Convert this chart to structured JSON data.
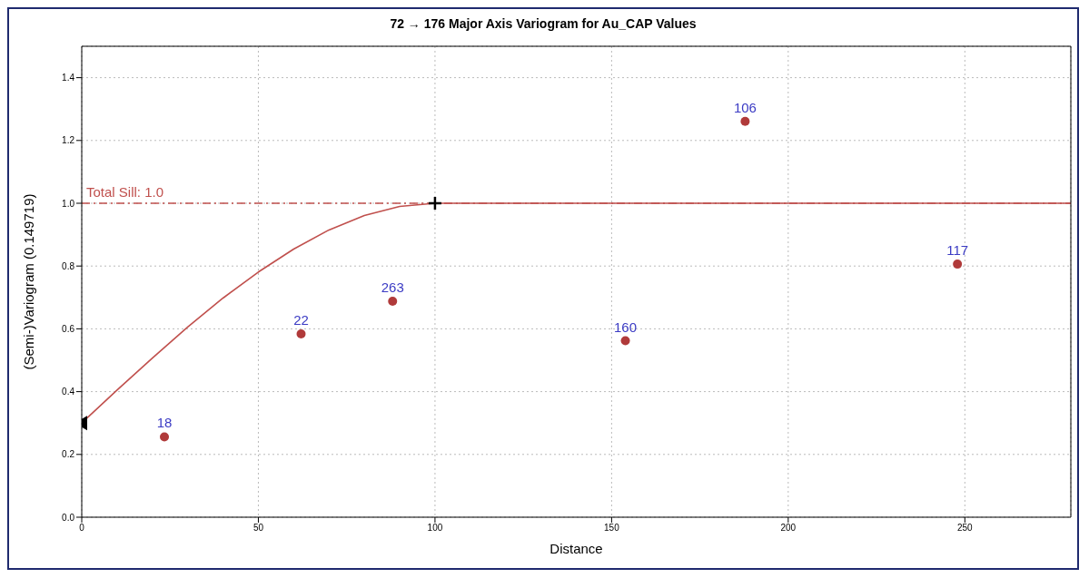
{
  "chart_data": {
    "type": "scatter",
    "title": "72 → 176 Major Axis Variogram for Au_CAP Values",
    "xlabel": "Distance",
    "ylabel": "(Semi-)Variogram (0.149719)",
    "xlim": [
      0,
      280
    ],
    "xticks": [
      0,
      50,
      100,
      150,
      200,
      250
    ],
    "ylim": [
      0,
      1.5
    ],
    "yticks": [
      {
        "value": 0,
        "label": "0.0"
      },
      0.2,
      0.4,
      0.6,
      0.8,
      {
        "value": 1,
        "label": "1.0"
      },
      1.2,
      1.4
    ],
    "grid": true,
    "annotations": [
      {
        "text": "18",
        "x": 23.4,
        "y": 0.256
      },
      {
        "text": "22",
        "x": 62.1,
        "y": 0.584
      },
      {
        "text": "263",
        "x": 88.0,
        "y": 0.688
      },
      {
        "text": "160",
        "x": 153.9,
        "y": 0.562
      },
      {
        "text": "106",
        "x": 187.8,
        "y": 1.261
      },
      {
        "text": "117",
        "x": 247.9,
        "y": 0.806
      }
    ],
    "series": [
      {
        "marker": "circle",
        "color": "#b03a3a",
        "x": [
          23.4,
          62.1,
          88.0,
          153.9,
          187.8,
          247.9
        ],
        "values": [
          0.256,
          0.584,
          0.688,
          0.562,
          1.261,
          0.806
        ]
      },
      {
        "type": "line",
        "marker": "none",
        "color": "#c0504d",
        "x": [
          0,
          10,
          20,
          30,
          40,
          50,
          60,
          70,
          80,
          90,
          100,
          280
        ],
        "values": [
          0.3,
          0.405,
          0.507,
          0.606,
          0.698,
          0.781,
          0.854,
          0.915,
          0.961,
          0.99,
          1.0,
          1.0
        ]
      },
      {
        "type": "scatter",
        "marker": "triangle",
        "color": "#000000",
        "x": [
          0
        ],
        "values": [
          0.3
        ]
      },
      {
        "type": "scatter",
        "marker": "cross",
        "color": "#000000",
        "x": [
          100
        ],
        "values": [
          1.0
        ]
      }
    ],
    "ref_lines": [
      {
        "axis": "y",
        "value": 1.0,
        "label": "Total Sill: 1.0",
        "color": "#c0504d",
        "line_style": "dashed"
      }
    ]
  }
}
